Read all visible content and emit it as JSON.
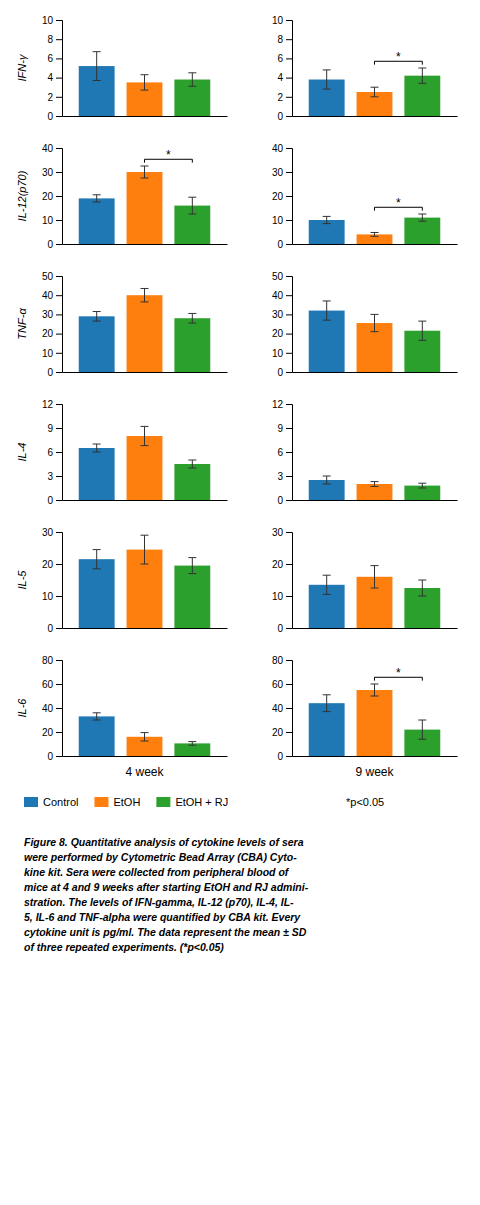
{
  "chart_data": [
    {
      "type": "bar",
      "ylabel": "IFN-γ",
      "ylim": [
        0,
        10
      ],
      "yticks": [
        0,
        2,
        4,
        6,
        8,
        10
      ],
      "series": [
        {
          "name": "Control",
          "values": [
            5.2
          ],
          "errors": [
            1.5
          ]
        },
        {
          "name": "EtOH",
          "values": [
            3.5
          ],
          "errors": [
            0.8
          ]
        },
        {
          "name": "EtOH + RJ",
          "values": [
            3.8
          ],
          "errors": [
            0.7
          ]
        }
      ],
      "legend": "bottom",
      "note": "*p<0.05",
      "caption": [
        "Figure 8. Quantitative analysis of cytokine levels of sera",
        "were performed by Cytometric Bead Array (CBA) Cyto-",
        "kine kit. Sera were collected from peripheral blood of",
        "mice at 4 and 9 weeks after starting EtOH and RJ admini-",
        "stration. The levels of IFN-gamma, IL-12 (p70), IL-4, IL-",
        "5, IL-6 and TNF-alpha were quantified by CBA kit. Every",
        "cytokine unit is pg/ml. The data represent the mean ± SD",
        "of three repeated experiments. (*p<0.05)"
      ]
    },
    {
      "type": "bar",
      "ylim": [
        0,
        10
      ],
      "yticks": [
        0,
        2,
        4,
        6,
        8,
        10
      ],
      "series": [
        {
          "name": "Control",
          "values": [
            3.8
          ],
          "errors": [
            1.0
          ]
        },
        {
          "name": "EtOH",
          "values": [
            2.5
          ],
          "errors": [
            0.5
          ]
        },
        {
          "name": "EtOH + RJ",
          "values": [
            4.2
          ],
          "errors": [
            0.8
          ]
        }
      ],
      "annotations": [
        {
          "text": "*",
          "series": [
            1,
            2
          ]
        }
      ]
    },
    {
      "type": "bar",
      "ylabel": "IL-12(p70)",
      "ylim": [
        0,
        40
      ],
      "yticks": [
        0,
        10,
        20,
        30,
        40
      ],
      "series": [
        {
          "name": "Control",
          "values": [
            19.0
          ],
          "errors": [
            1.5
          ]
        },
        {
          "name": "EtOH",
          "values": [
            30.0
          ],
          "errors": [
            2.5
          ]
        },
        {
          "name": "EtOH + RJ",
          "values": [
            16.0
          ],
          "errors": [
            3.5
          ]
        }
      ],
      "annotations": [
        {
          "text": "*",
          "series": [
            1,
            2
          ]
        }
      ]
    },
    {
      "type": "bar",
      "ylim": [
        0,
        40
      ],
      "yticks": [
        0,
        10,
        20,
        30,
        40
      ],
      "series": [
        {
          "name": "Control",
          "values": [
            10.0
          ],
          "errors": [
            1.5
          ]
        },
        {
          "name": "EtOH",
          "values": [
            4.0
          ],
          "errors": [
            0.8
          ]
        },
        {
          "name": "EtOH + RJ",
          "values": [
            11.0
          ],
          "errors": [
            1.5
          ]
        }
      ],
      "annotations": [
        {
          "text": "*",
          "series": [
            1,
            2
          ]
        }
      ]
    },
    {
      "type": "bar",
      "ylabel": "TNF-α",
      "ylim": [
        0,
        50
      ],
      "yticks": [
        0,
        10,
        20,
        30,
        40,
        50
      ],
      "series": [
        {
          "name": "Control",
          "values": [
            29.0
          ],
          "errors": [
            2.5
          ]
        },
        {
          "name": "EtOH",
          "values": [
            40.0
          ],
          "errors": [
            3.5
          ]
        },
        {
          "name": "EtOH + RJ",
          "values": [
            28.0
          ],
          "errors": [
            2.5
          ]
        }
      ]
    },
    {
      "type": "bar",
      "ylim": [
        0,
        50
      ],
      "yticks": [
        0,
        10,
        20,
        30,
        40,
        50
      ],
      "series": [
        {
          "name": "Control",
          "values": [
            32.0
          ],
          "errors": [
            5.0
          ]
        },
        {
          "name": "EtOH",
          "values": [
            25.5
          ],
          "errors": [
            4.5
          ]
        },
        {
          "name": "EtOH + RJ",
          "values": [
            21.5
          ],
          "errors": [
            5.0
          ]
        }
      ]
    },
    {
      "type": "bar",
      "ylabel": "IL-4",
      "ylim": [
        0,
        12
      ],
      "yticks": [
        0,
        3,
        6,
        9,
        12
      ],
      "series": [
        {
          "name": "Control",
          "values": [
            6.5
          ],
          "errors": [
            0.5
          ]
        },
        {
          "name": "EtOH",
          "values": [
            8.0
          ],
          "errors": [
            1.2
          ]
        },
        {
          "name": "EtOH + RJ",
          "values": [
            4.5
          ],
          "errors": [
            0.5
          ]
        }
      ]
    },
    {
      "type": "bar",
      "ylim": [
        0,
        12
      ],
      "yticks": [
        0,
        3,
        6,
        9,
        12
      ],
      "series": [
        {
          "name": "Control",
          "values": [
            2.5
          ],
          "errors": [
            0.5
          ]
        },
        {
          "name": "EtOH",
          "values": [
            2.0
          ],
          "errors": [
            0.3
          ]
        },
        {
          "name": "EtOH + RJ",
          "values": [
            1.8
          ],
          "errors": [
            0.3
          ]
        }
      ]
    },
    {
      "type": "bar",
      "ylabel": "IL-5",
      "ylim": [
        0,
        30
      ],
      "yticks": [
        0,
        10,
        20,
        30
      ],
      "series": [
        {
          "name": "Control",
          "values": [
            21.5
          ],
          "errors": [
            3.0
          ]
        },
        {
          "name": "EtOH",
          "values": [
            24.5
          ],
          "errors": [
            4.5
          ]
        },
        {
          "name": "EtOH + RJ",
          "values": [
            19.5
          ],
          "errors": [
            2.5
          ]
        }
      ]
    },
    {
      "type": "bar",
      "ylim": [
        0,
        30
      ],
      "yticks": [
        0,
        10,
        20,
        30
      ],
      "series": [
        {
          "name": "Control",
          "values": [
            13.5
          ],
          "errors": [
            3.0
          ]
        },
        {
          "name": "EtOH",
          "values": [
            16.0
          ],
          "errors": [
            3.5
          ]
        },
        {
          "name": "EtOH + RJ",
          "values": [
            12.5
          ],
          "errors": [
            2.5
          ]
        }
      ]
    },
    {
      "type": "bar",
      "ylabel": "IL-6",
      "xlabel": "4 week",
      "ylim": [
        0,
        80
      ],
      "yticks": [
        0,
        20,
        40,
        60,
        80
      ],
      "series": [
        {
          "name": "Control",
          "values": [
            33.0
          ],
          "errors": [
            3.0
          ]
        },
        {
          "name": "EtOH",
          "values": [
            16.0
          ],
          "errors": [
            3.5
          ]
        },
        {
          "name": "EtOH + RJ",
          "values": [
            10.5
          ],
          "errors": [
            1.5
          ]
        }
      ]
    },
    {
      "type": "bar",
      "xlabel": "9 week",
      "ylim": [
        0,
        80
      ],
      "yticks": [
        0,
        20,
        40,
        60,
        80
      ],
      "series": [
        {
          "name": "Control",
          "values": [
            44.0
          ],
          "errors": [
            7.0
          ]
        },
        {
          "name": "EtOH",
          "values": [
            55.0
          ],
          "errors": [
            5.0
          ]
        },
        {
          "name": "EtOH + RJ",
          "values": [
            22.0
          ],
          "errors": [
            8.0
          ]
        }
      ],
      "annotations": [
        {
          "text": "*",
          "series": [
            1,
            2
          ]
        }
      ]
    }
  ]
}
